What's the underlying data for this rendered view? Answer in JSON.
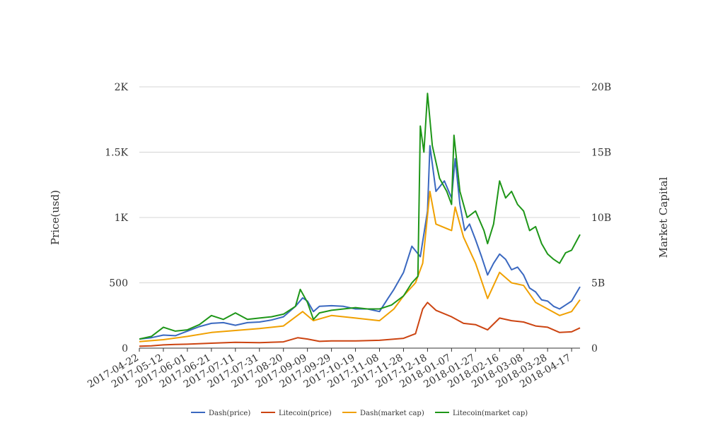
{
  "chart_data": {
    "type": "line",
    "title": "",
    "ylabel_left": "Price(usd)",
    "ylabel_right": "Market Capital",
    "x_tick_labels": [
      "2017-04-22",
      "2017-05-12",
      "2017-06-01",
      "2017-06-21",
      "2017-07-11",
      "2017-07-31",
      "2017-08-20",
      "2017-09-09",
      "2017-09-29",
      "2017-10-19",
      "2017-11-08",
      "2017-11-28",
      "2017-12-18",
      "2018-01-07",
      "2018-01-27",
      "2018-02-16",
      "2018-03-08",
      "2018-03-28",
      "2018-04-17"
    ],
    "x_range": [
      "2017-04-22",
      "2018-04-24"
    ],
    "left_axis": {
      "range": [
        0,
        2000
      ],
      "ticks": [
        0,
        500,
        1000,
        1500,
        2000
      ],
      "tick_labels": [
        "0",
        "500",
        "1K",
        "1.5K",
        "2K"
      ]
    },
    "right_axis": {
      "range": [
        0,
        20000000000
      ],
      "ticks": [
        0,
        5000000000,
        10000000000,
        15000000000,
        20000000000
      ],
      "tick_labels": [
        "0",
        "5B",
        "10B",
        "15B",
        "20B"
      ]
    },
    "grid": true,
    "legend_position": "bottom",
    "series": [
      {
        "name": "Dash(price)",
        "axis": "left",
        "color": "#3a68c0",
        "points": [
          [
            "2017-04-22",
            70
          ],
          [
            "2017-05-02",
            80
          ],
          [
            "2017-05-12",
            100
          ],
          [
            "2017-05-22",
            95
          ],
          [
            "2017-06-01",
            130
          ],
          [
            "2017-06-11",
            165
          ],
          [
            "2017-06-21",
            190
          ],
          [
            "2017-07-01",
            195
          ],
          [
            "2017-07-11",
            175
          ],
          [
            "2017-07-21",
            195
          ],
          [
            "2017-07-31",
            200
          ],
          [
            "2017-08-10",
            215
          ],
          [
            "2017-08-20",
            240
          ],
          [
            "2017-08-30",
            320
          ],
          [
            "2017-09-05",
            385
          ],
          [
            "2017-09-09",
            360
          ],
          [
            "2017-09-14",
            280
          ],
          [
            "2017-09-19",
            320
          ],
          [
            "2017-09-29",
            325
          ],
          [
            "2017-10-09",
            320
          ],
          [
            "2017-10-19",
            300
          ],
          [
            "2017-10-29",
            300
          ],
          [
            "2017-11-08",
            280
          ],
          [
            "2017-11-15",
            380
          ],
          [
            "2017-11-20",
            450
          ],
          [
            "2017-11-28",
            580
          ],
          [
            "2017-12-05",
            780
          ],
          [
            "2017-12-12",
            700
          ],
          [
            "2017-12-18",
            1050
          ],
          [
            "2017-12-20",
            1550
          ],
          [
            "2017-12-25",
            1200
          ],
          [
            "2018-01-01",
            1280
          ],
          [
            "2018-01-07",
            1150
          ],
          [
            "2018-01-10",
            1450
          ],
          [
            "2018-01-14",
            1100
          ],
          [
            "2018-01-18",
            900
          ],
          [
            "2018-01-22",
            950
          ],
          [
            "2018-01-27",
            830
          ],
          [
            "2018-02-01",
            700
          ],
          [
            "2018-02-06",
            560
          ],
          [
            "2018-02-11",
            650
          ],
          [
            "2018-02-16",
            720
          ],
          [
            "2018-02-21",
            680
          ],
          [
            "2018-02-26",
            600
          ],
          [
            "2018-03-03",
            620
          ],
          [
            "2018-03-08",
            560
          ],
          [
            "2018-03-13",
            460
          ],
          [
            "2018-03-18",
            430
          ],
          [
            "2018-03-23",
            370
          ],
          [
            "2018-03-28",
            360
          ],
          [
            "2018-04-02",
            320
          ],
          [
            "2018-04-07",
            300
          ],
          [
            "2018-04-12",
            330
          ],
          [
            "2018-04-17",
            360
          ],
          [
            "2018-04-24",
            470
          ]
        ]
      },
      {
        "name": "Litecoin(price)",
        "axis": "left",
        "color": "#cc4411",
        "points": [
          [
            "2017-04-22",
            15
          ],
          [
            "2017-05-02",
            18
          ],
          [
            "2017-05-12",
            25
          ],
          [
            "2017-05-22",
            28
          ],
          [
            "2017-06-01",
            30
          ],
          [
            "2017-06-21",
            38
          ],
          [
            "2017-07-11",
            45
          ],
          [
            "2017-07-31",
            42
          ],
          [
            "2017-08-20",
            48
          ],
          [
            "2017-09-01",
            80
          ],
          [
            "2017-09-09",
            70
          ],
          [
            "2017-09-19",
            52
          ],
          [
            "2017-09-29",
            55
          ],
          [
            "2017-10-19",
            55
          ],
          [
            "2017-11-08",
            60
          ],
          [
            "2017-11-28",
            75
          ],
          [
            "2017-12-08",
            110
          ],
          [
            "2017-12-14",
            300
          ],
          [
            "2017-12-18",
            350
          ],
          [
            "2017-12-25",
            290
          ],
          [
            "2018-01-07",
            240
          ],
          [
            "2018-01-17",
            190
          ],
          [
            "2018-01-27",
            180
          ],
          [
            "2018-02-06",
            140
          ],
          [
            "2018-02-16",
            230
          ],
          [
            "2018-02-26",
            210
          ],
          [
            "2018-03-08",
            200
          ],
          [
            "2018-03-18",
            170
          ],
          [
            "2018-03-28",
            160
          ],
          [
            "2018-04-07",
            120
          ],
          [
            "2018-04-17",
            125
          ],
          [
            "2018-04-24",
            155
          ]
        ]
      },
      {
        "name": "Dash(market cap)",
        "axis": "right",
        "color": "#f0a000",
        "points": [
          [
            "2017-04-22",
            500000000
          ],
          [
            "2017-05-12",
            650000000
          ],
          [
            "2017-06-01",
            900000000
          ],
          [
            "2017-06-21",
            1200000000
          ],
          [
            "2017-07-11",
            1350000000
          ],
          [
            "2017-07-31",
            1500000000
          ],
          [
            "2017-08-20",
            1700000000
          ],
          [
            "2017-09-05",
            2800000000
          ],
          [
            "2017-09-14",
            2100000000
          ],
          [
            "2017-09-29",
            2500000000
          ],
          [
            "2017-10-19",
            2300000000
          ],
          [
            "2017-11-08",
            2100000000
          ],
          [
            "2017-11-20",
            3000000000
          ],
          [
            "2017-11-28",
            4000000000
          ],
          [
            "2017-12-08",
            5000000000
          ],
          [
            "2017-12-14",
            6500000000
          ],
          [
            "2017-12-20",
            12000000000
          ],
          [
            "2017-12-25",
            9500000000
          ],
          [
            "2018-01-07",
            9000000000
          ],
          [
            "2018-01-10",
            10800000000
          ],
          [
            "2018-01-17",
            8500000000
          ],
          [
            "2018-01-27",
            6500000000
          ],
          [
            "2018-02-06",
            3800000000
          ],
          [
            "2018-02-16",
            5800000000
          ],
          [
            "2018-02-26",
            5000000000
          ],
          [
            "2018-03-08",
            4800000000
          ],
          [
            "2018-03-18",
            3500000000
          ],
          [
            "2018-03-28",
            3000000000
          ],
          [
            "2018-04-07",
            2500000000
          ],
          [
            "2018-04-17",
            2800000000
          ],
          [
            "2018-04-24",
            3700000000
          ]
        ]
      },
      {
        "name": "Litecoin(market cap)",
        "axis": "right",
        "color": "#1e9618",
        "points": [
          [
            "2017-04-22",
            700000000
          ],
          [
            "2017-05-02",
            900000000
          ],
          [
            "2017-05-12",
            1600000000
          ],
          [
            "2017-05-22",
            1300000000
          ],
          [
            "2017-06-01",
            1400000000
          ],
          [
            "2017-06-11",
            1800000000
          ],
          [
            "2017-06-21",
            2500000000
          ],
          [
            "2017-07-01",
            2200000000
          ],
          [
            "2017-07-11",
            2700000000
          ],
          [
            "2017-07-21",
            2200000000
          ],
          [
            "2017-07-31",
            2300000000
          ],
          [
            "2017-08-10",
            2400000000
          ],
          [
            "2017-08-20",
            2600000000
          ],
          [
            "2017-08-30",
            3200000000
          ],
          [
            "2017-09-03",
            4500000000
          ],
          [
            "2017-09-09",
            3500000000
          ],
          [
            "2017-09-14",
            2200000000
          ],
          [
            "2017-09-19",
            2700000000
          ],
          [
            "2017-09-29",
            2900000000
          ],
          [
            "2017-10-09",
            3000000000
          ],
          [
            "2017-10-19",
            3100000000
          ],
          [
            "2017-10-29",
            3000000000
          ],
          [
            "2017-11-08",
            3000000000
          ],
          [
            "2017-11-18",
            3300000000
          ],
          [
            "2017-11-28",
            4000000000
          ],
          [
            "2017-12-05",
            5000000000
          ],
          [
            "2017-12-10",
            5500000000
          ],
          [
            "2017-12-12",
            17000000000
          ],
          [
            "2017-12-15",
            15000000000
          ],
          [
            "2017-12-18",
            19500000000
          ],
          [
            "2017-12-22",
            15500000000
          ],
          [
            "2017-12-28",
            13000000000
          ],
          [
            "2018-01-03",
            12000000000
          ],
          [
            "2018-01-07",
            11000000000
          ],
          [
            "2018-01-09",
            16300000000
          ],
          [
            "2018-01-14",
            12000000000
          ],
          [
            "2018-01-20",
            10000000000
          ],
          [
            "2018-01-27",
            10500000000
          ],
          [
            "2018-02-03",
            9000000000
          ],
          [
            "2018-02-06",
            8000000000
          ],
          [
            "2018-02-11",
            9500000000
          ],
          [
            "2018-02-16",
            12800000000
          ],
          [
            "2018-02-21",
            11500000000
          ],
          [
            "2018-02-26",
            12000000000
          ],
          [
            "2018-03-03",
            11000000000
          ],
          [
            "2018-03-08",
            10500000000
          ],
          [
            "2018-03-13",
            9000000000
          ],
          [
            "2018-03-18",
            9300000000
          ],
          [
            "2018-03-23",
            8000000000
          ],
          [
            "2018-03-28",
            7200000000
          ],
          [
            "2018-04-02",
            6800000000
          ],
          [
            "2018-04-07",
            6500000000
          ],
          [
            "2018-04-12",
            7300000000
          ],
          [
            "2018-04-17",
            7500000000
          ],
          [
            "2018-04-24",
            8700000000
          ]
        ]
      }
    ]
  }
}
